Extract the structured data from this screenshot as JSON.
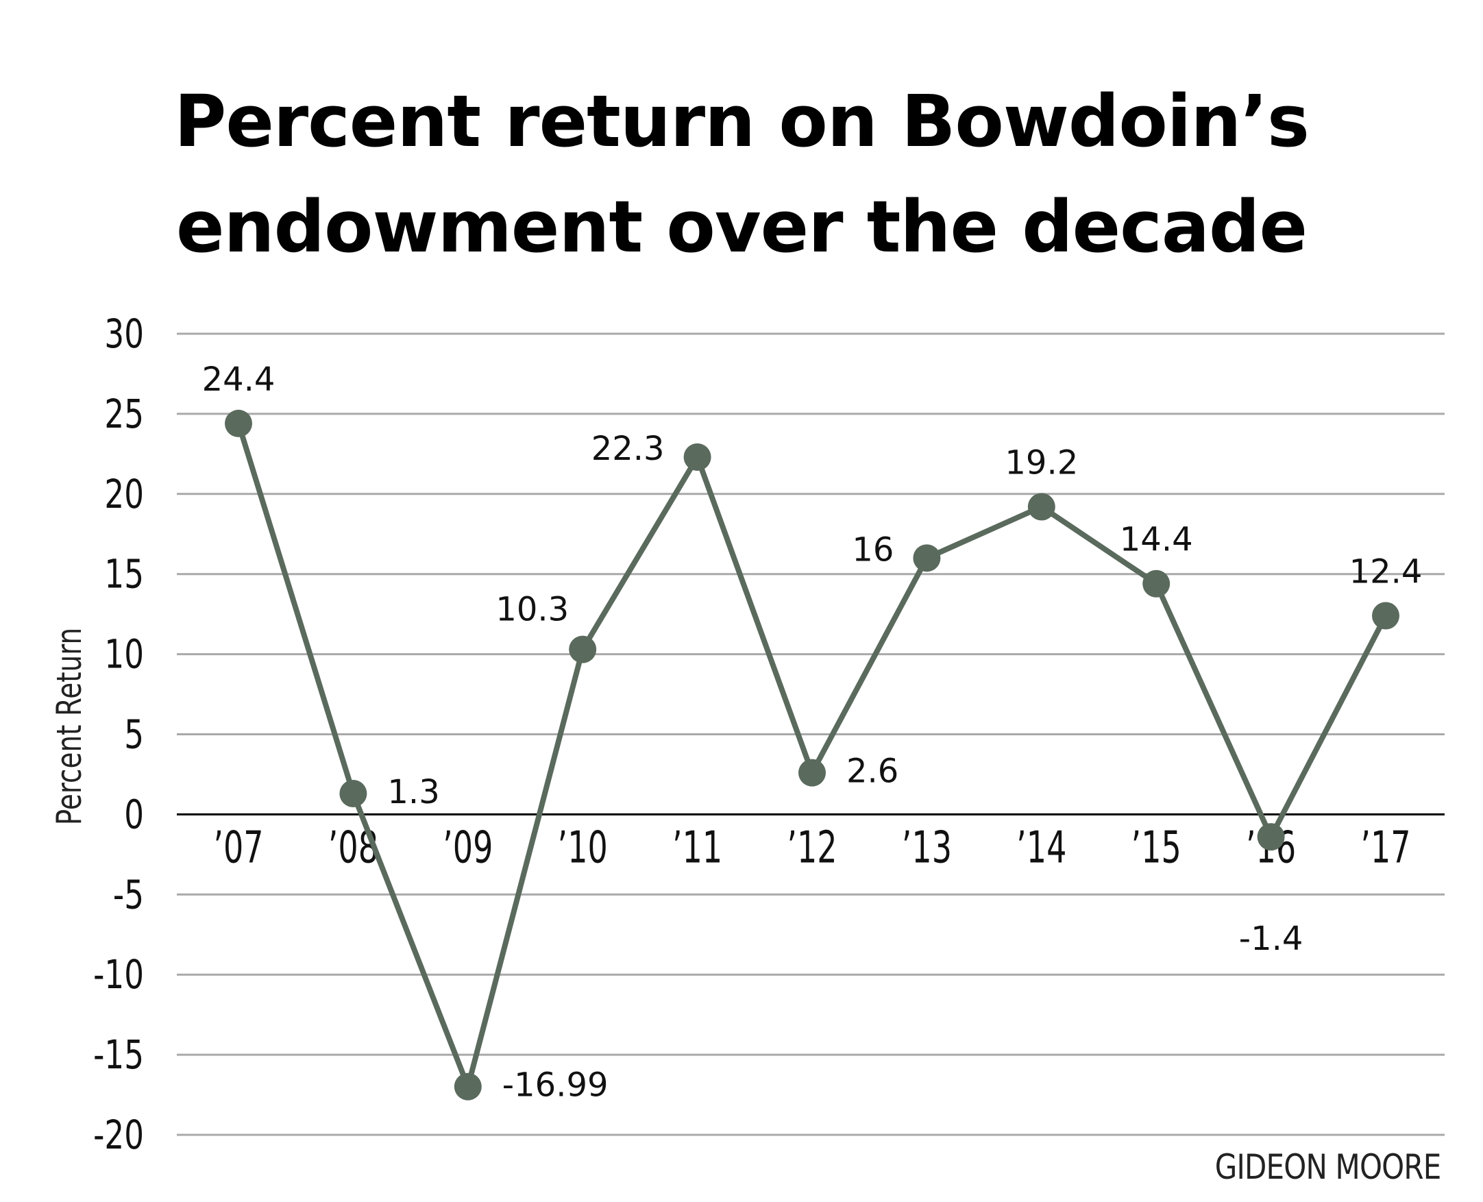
{
  "chart_data": {
    "type": "line",
    "title_lines": [
      "Percent return on Bowdoin’s",
      "endowment over the decade"
    ],
    "ylabel": "Percent Return",
    "xlabel": "",
    "categories": [
      "’07",
      "’08",
      "’09",
      "’10",
      "’11",
      "’12",
      "’13",
      "’14",
      "’15",
      "’16",
      "’17"
    ],
    "values": [
      24.4,
      1.3,
      -16.99,
      10.3,
      22.3,
      2.6,
      16,
      19.2,
      14.4,
      -1.4,
      12.4
    ],
    "labels": [
      "24.4",
      "1.3",
      "-16.99",
      "10.3",
      "22.3",
      "2.6",
      "16",
      "19.2",
      "14.4",
      "-1.4",
      "12.4"
    ],
    "label_placement": [
      "above",
      "right",
      "right",
      "above-left",
      "left",
      "right",
      "left",
      "above",
      "above",
      "below",
      "above"
    ],
    "yticks": [
      30,
      25,
      20,
      15,
      10,
      5,
      0,
      -5,
      -10,
      -15,
      -20
    ],
    "ylim": [
      -20,
      30
    ],
    "grid": true,
    "line_color": "#5a6a5d",
    "grid_color": "#a9a9a9",
    "axis_color": "#000000",
    "credit": "GIDEON MOORE"
  }
}
